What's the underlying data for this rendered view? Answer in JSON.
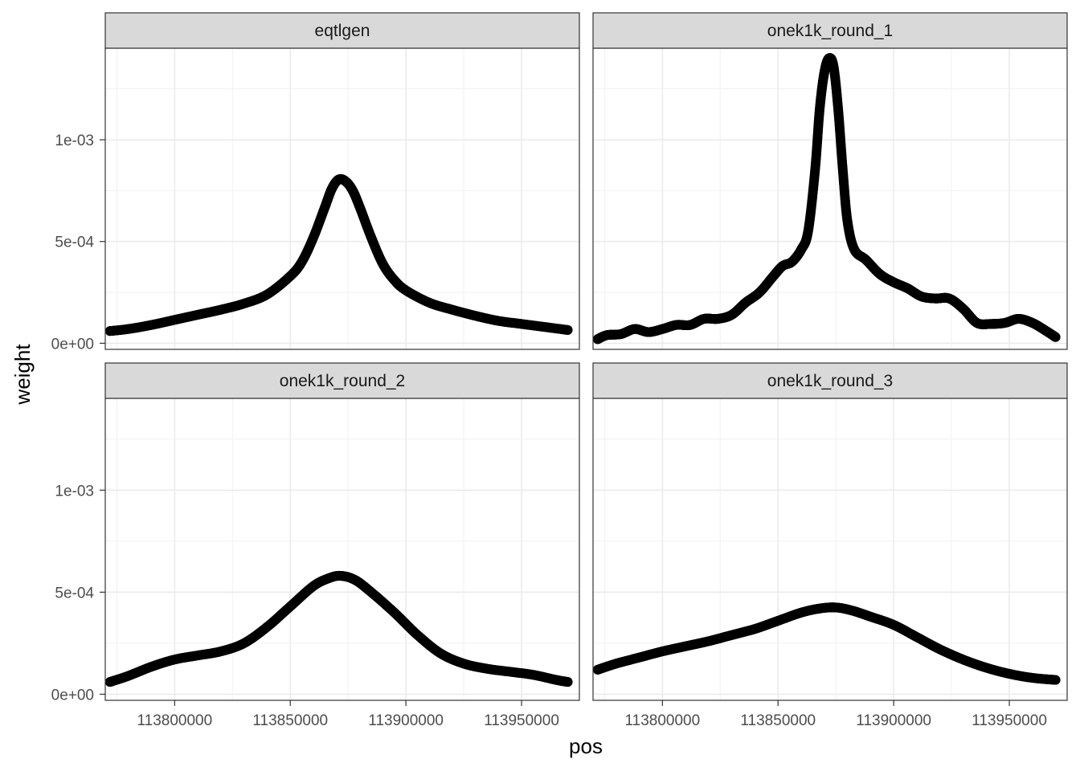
{
  "chart_data": {
    "type": "scatter",
    "layout": "facet-grid 2x2",
    "xlabel": "pos",
    "ylabel": "weight",
    "xlim": [
      113770000,
      113975000
    ],
    "ylim": [
      -3e-05,
      0.00145
    ],
    "x_ticks": [
      {
        "value": 113800000,
        "label": "113800000"
      },
      {
        "value": 113850000,
        "label": "113850000"
      },
      {
        "value": 113900000,
        "label": "113900000"
      },
      {
        "value": 113950000,
        "label": "113950000"
      }
    ],
    "y_ticks": [
      {
        "value": 0,
        "label": "0e+00"
      },
      {
        "value": 0.0005,
        "label": "5e-04"
      },
      {
        "value": 0.001,
        "label": "1e-03"
      }
    ],
    "grid": true,
    "point_color": "#000000",
    "panels": [
      {
        "name": "eqtlgen",
        "points": [
          [
            113772000,
            6e-05
          ],
          [
            113780000,
            7e-05
          ],
          [
            113790000,
            9e-05
          ],
          [
            113800000,
            0.000115
          ],
          [
            113810000,
            0.00014
          ],
          [
            113820000,
            0.000165
          ],
          [
            113830000,
            0.000195
          ],
          [
            113840000,
            0.00024
          ],
          [
            113850000,
            0.00033
          ],
          [
            113855000,
            0.0004
          ],
          [
            113860000,
            0.00052
          ],
          [
            113865000,
            0.00067
          ],
          [
            113868000,
            0.00076
          ],
          [
            113871000,
            0.000805
          ],
          [
            113874000,
            0.000795
          ],
          [
            113877000,
            0.00075
          ],
          [
            113880000,
            0.00067
          ],
          [
            113885000,
            0.00052
          ],
          [
            113890000,
            0.00039
          ],
          [
            113895000,
            0.00031
          ],
          [
            113900000,
            0.00026
          ],
          [
            113910000,
            0.0002
          ],
          [
            113920000,
            0.000165
          ],
          [
            113930000,
            0.000135
          ],
          [
            113940000,
            0.00011
          ],
          [
            113950000,
            9.5e-05
          ],
          [
            113960000,
            8e-05
          ],
          [
            113970000,
            6.5e-05
          ]
        ]
      },
      {
        "name": "onek1k_round_1",
        "points": [
          [
            113772000,
            2e-05
          ],
          [
            113776000,
            4e-05
          ],
          [
            113782000,
            4.5e-05
          ],
          [
            113788000,
            7e-05
          ],
          [
            113794000,
            5.5e-05
          ],
          [
            113800000,
            7e-05
          ],
          [
            113806000,
            9e-05
          ],
          [
            113812000,
            9e-05
          ],
          [
            113818000,
            0.00012
          ],
          [
            113824000,
            0.00012
          ],
          [
            113830000,
            0.00014
          ],
          [
            113836000,
            0.0002
          ],
          [
            113842000,
            0.00025
          ],
          [
            113848000,
            0.00033
          ],
          [
            113852000,
            0.00038
          ],
          [
            113856000,
            0.0004
          ],
          [
            113860000,
            0.00046
          ],
          [
            113863000,
            0.00055
          ],
          [
            113866000,
            0.00085
          ],
          [
            113868000,
            0.00115
          ],
          [
            113870000,
            0.00133
          ],
          [
            113872000,
            0.0014
          ],
          [
            113874000,
            0.00136
          ],
          [
            113876000,
            0.00115
          ],
          [
            113878000,
            0.00085
          ],
          [
            113880000,
            0.0006
          ],
          [
            113883000,
            0.00046
          ],
          [
            113888000,
            0.00041
          ],
          [
            113894000,
            0.00034
          ],
          [
            113900000,
            0.0003
          ],
          [
            113906000,
            0.00027
          ],
          [
            113912000,
            0.00023
          ],
          [
            113918000,
            0.00022
          ],
          [
            113924000,
            0.00022
          ],
          [
            113930000,
            0.00017
          ],
          [
            113936000,
            0.0001
          ],
          [
            113942000,
            9.5e-05
          ],
          [
            113948000,
            0.0001
          ],
          [
            113954000,
            0.00012
          ],
          [
            113960000,
            0.0001
          ],
          [
            113966000,
            6e-05
          ],
          [
            113970000,
            3e-05
          ]
        ]
      },
      {
        "name": "onek1k_round_2",
        "points": [
          [
            113772000,
            6e-05
          ],
          [
            113780000,
            9e-05
          ],
          [
            113790000,
            0.000135
          ],
          [
            113800000,
            0.00017
          ],
          [
            113810000,
            0.00019
          ],
          [
            113820000,
            0.00021
          ],
          [
            113830000,
            0.00025
          ],
          [
            113840000,
            0.00033
          ],
          [
            113850000,
            0.00043
          ],
          [
            113860000,
            0.00053
          ],
          [
            113867000,
            0.00057
          ],
          [
            113872000,
            0.00058
          ],
          [
            113878000,
            0.00056
          ],
          [
            113885000,
            0.0005
          ],
          [
            113895000,
            0.0004
          ],
          [
            113905000,
            0.00029
          ],
          [
            113915000,
            0.0002
          ],
          [
            113925000,
            0.00015
          ],
          [
            113935000,
            0.000125
          ],
          [
            113945000,
            0.00011
          ],
          [
            113955000,
            9.5e-05
          ],
          [
            113965000,
            7e-05
          ],
          [
            113970000,
            6e-05
          ]
        ]
      },
      {
        "name": "onek1k_round_3",
        "points": [
          [
            113772000,
            0.00012
          ],
          [
            113780000,
            0.00015
          ],
          [
            113790000,
            0.00018
          ],
          [
            113800000,
            0.00021
          ],
          [
            113810000,
            0.000235
          ],
          [
            113820000,
            0.00026
          ],
          [
            113830000,
            0.00029
          ],
          [
            113840000,
            0.00032
          ],
          [
            113850000,
            0.00036
          ],
          [
            113860000,
            0.0004
          ],
          [
            113868000,
            0.00042
          ],
          [
            113875000,
            0.000425
          ],
          [
            113882000,
            0.00041
          ],
          [
            113890000,
            0.00038
          ],
          [
            113900000,
            0.00034
          ],
          [
            113910000,
            0.00028
          ],
          [
            113920000,
            0.00022
          ],
          [
            113930000,
            0.00017
          ],
          [
            113940000,
            0.00013
          ],
          [
            113950000,
            0.0001
          ],
          [
            113960000,
            8e-05
          ],
          [
            113970000,
            7e-05
          ]
        ]
      }
    ]
  }
}
